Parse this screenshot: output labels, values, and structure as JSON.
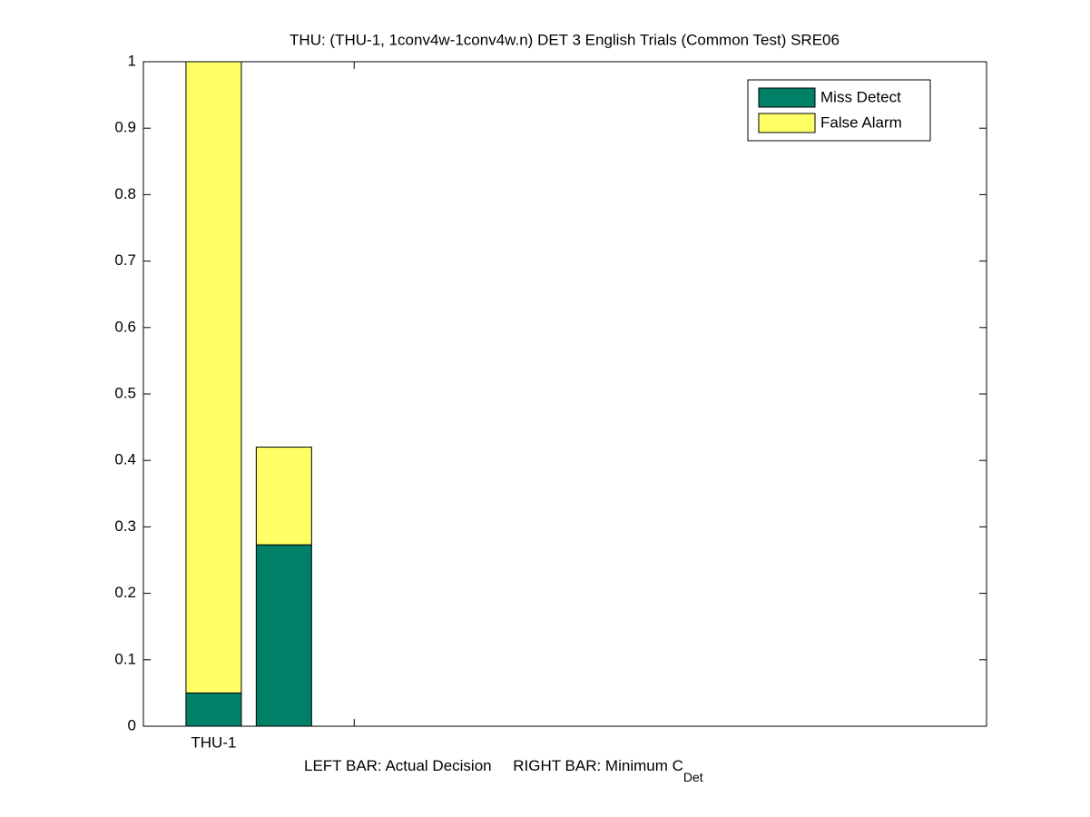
{
  "chart_data": {
    "type": "stacked_bar",
    "title": "THU: (THU-1, 1conv4w-1conv4w.n) DET 3 English Trials (Common Test) SRE06",
    "xlabel": "LEFT BAR: Actual Decision     RIGHT BAR: Minimum C",
    "xlabel_subscript": "Det",
    "x": [
      1,
      1.5
    ],
    "xlim": [
      0.5,
      6.5
    ],
    "xticks": [
      1,
      2
    ],
    "xtick_labels": [
      "THU-1",
      null
    ],
    "ylim": [
      0,
      1
    ],
    "yticks": [
      0,
      0.1,
      0.2,
      0.3,
      0.4,
      0.5,
      0.6,
      0.7,
      0.8,
      0.9,
      1
    ],
    "series": [
      {
        "name": "Miss Detect",
        "color": "#008066",
        "values": [
          0.05,
          0.273
        ]
      },
      {
        "name": "False Alarm",
        "color": "#ffff66",
        "values": [
          0.95,
          0.147
        ]
      }
    ],
    "legend": "top-right",
    "grid": false
  }
}
